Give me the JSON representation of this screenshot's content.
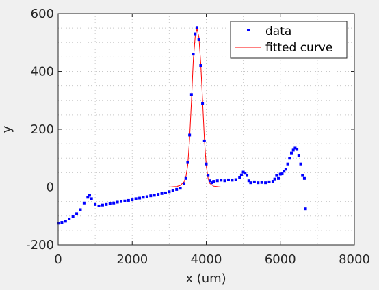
{
  "chart_data": {
    "type": "scatter",
    "xlabel": "x (um)",
    "ylabel": "y",
    "xlim": [
      0,
      8000
    ],
    "ylim": [
      -200,
      600
    ],
    "x_ticks": [
      0,
      2000,
      4000,
      6000,
      8000
    ],
    "y_ticks": [
      -200,
      0,
      200,
      400,
      600
    ],
    "x_tick_labels": [
      "0",
      "2000",
      "4000",
      "6000",
      "8000"
    ],
    "y_tick_labels": [
      "-200",
      "0",
      "200",
      "400",
      "600"
    ],
    "grid": "dotted, major and minor",
    "legend_position": "top-right",
    "series": [
      {
        "name": "data",
        "style": "markers",
        "color": "#0000ff",
        "x": [
          0,
          100,
          200,
          300,
          400,
          500,
          600,
          700,
          800,
          850,
          900,
          1000,
          1100,
          1200,
          1300,
          1400,
          1500,
          1600,
          1700,
          1800,
          1900,
          2000,
          2100,
          2200,
          2300,
          2400,
          2500,
          2600,
          2700,
          2800,
          2900,
          3000,
          3100,
          3200,
          3300,
          3400,
          3450,
          3500,
          3550,
          3600,
          3650,
          3700,
          3750,
          3800,
          3850,
          3900,
          3950,
          4000,
          4050,
          4100,
          4150,
          4200,
          4300,
          4400,
          4500,
          4600,
          4700,
          4800,
          4900,
          4950,
          5000,
          5050,
          5100,
          5150,
          5200,
          5300,
          5400,
          5500,
          5600,
          5700,
          5800,
          5850,
          5900,
          5950,
          6000,
          6050,
          6100,
          6150,
          6200,
          6250,
          6300,
          6350,
          6400,
          6450,
          6500,
          6550,
          6600,
          6650,
          6680
        ],
        "y": [
          -125,
          -122,
          -118,
          -110,
          -102,
          -92,
          -78,
          -55,
          -35,
          -28,
          -40,
          -60,
          -65,
          -62,
          -60,
          -58,
          -55,
          -52,
          -50,
          -48,
          -46,
          -44,
          -40,
          -38,
          -35,
          -33,
          -30,
          -28,
          -25,
          -22,
          -20,
          -16,
          -12,
          -8,
          -4,
          12,
          30,
          85,
          180,
          320,
          460,
          530,
          552,
          510,
          420,
          290,
          160,
          80,
          40,
          22,
          15,
          20,
          22,
          24,
          22,
          25,
          24,
          26,
          32,
          42,
          52,
          48,
          40,
          22,
          15,
          18,
          15,
          16,
          15,
          18,
          20,
          28,
          40,
          30,
          45,
          46,
          55,
          62,
          80,
          100,
          118,
          128,
          135,
          130,
          110,
          80,
          40,
          30,
          -75
        ]
      },
      {
        "name": "fitted curve",
        "style": "line",
        "color": "#ff0000",
        "x": [
          0,
          3000,
          3200,
          3300,
          3400,
          3450,
          3500,
          3550,
          3600,
          3650,
          3700,
          3750,
          3800,
          3850,
          3900,
          3950,
          4000,
          4050,
          4100,
          4200,
          4400,
          6600
        ],
        "y": [
          0,
          0,
          2,
          6,
          18,
          35,
          75,
          165,
          300,
          440,
          520,
          548,
          520,
          430,
          300,
          165,
          75,
          30,
          12,
          3,
          0,
          0
        ]
      }
    ]
  }
}
